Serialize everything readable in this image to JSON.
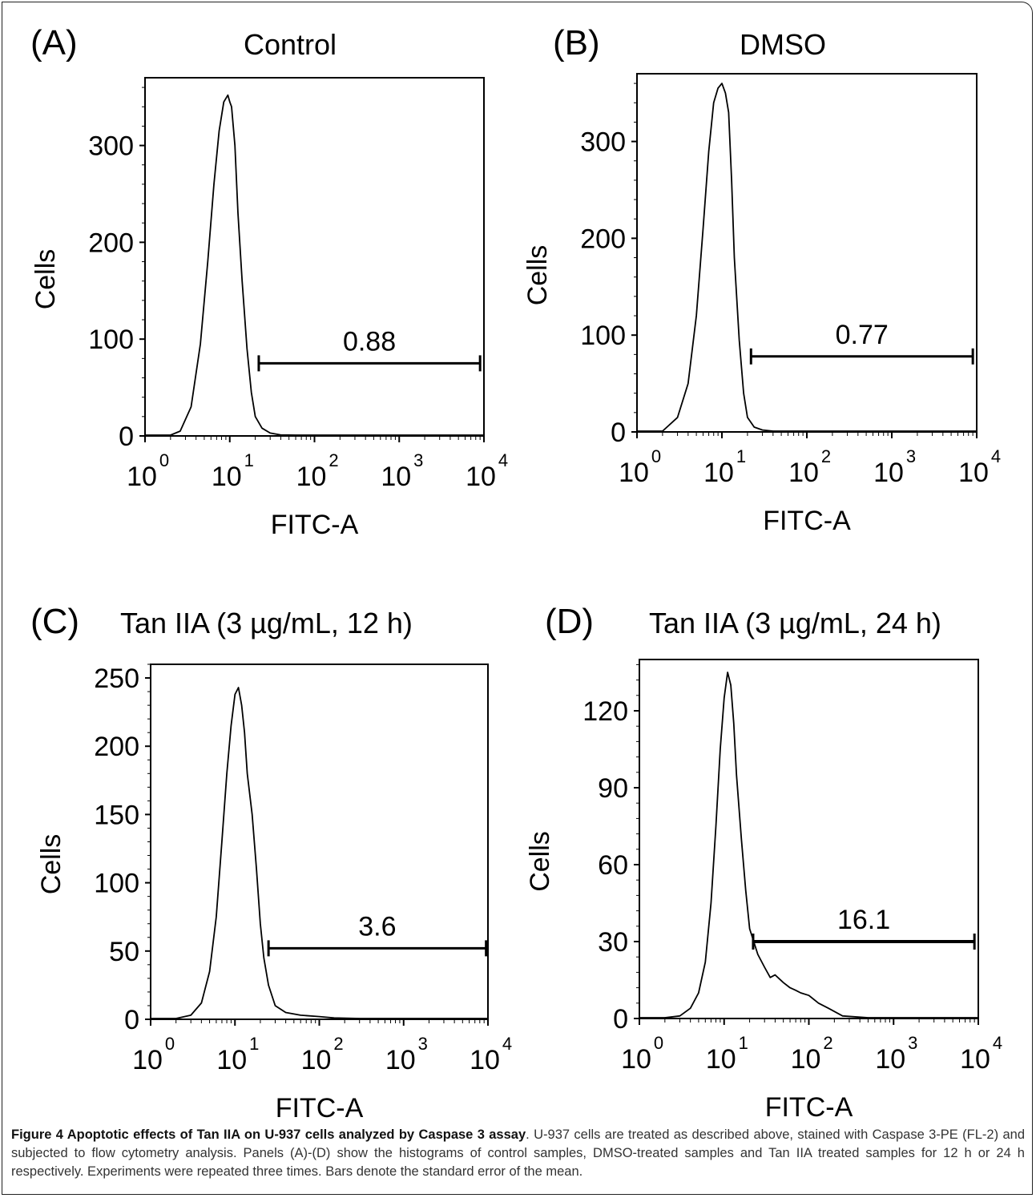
{
  "caption": {
    "title": "Figure 4 Apoptotic effects of Tan IIA on U-937 cells analyzed by Caspase 3 assay",
    "text": ". U-937 cells are treated as described above, stained with Caspase 3-PE (FL-2) and subjected to flow cytometry analysis. Panels (A)-(D) show the histograms of control samples, DMSO-treated samples and Tan IIA treated samples for 12 h or 24 h respectively. Experiments were repeated three times. Bars denote the standard error of the mean."
  },
  "chart_data": [
    {
      "type": "area",
      "panel": "(A)",
      "title": "Control",
      "xlabel": "FITC-A",
      "ylabel": "Cells",
      "x_scale": "log",
      "xlim": [
        1,
        10000
      ],
      "ylim": [
        0,
        370
      ],
      "yticks": [
        0,
        100,
        200,
        300
      ],
      "xticks": [
        "10^0",
        "10^1",
        "10^2",
        "10^3",
        "10^4"
      ],
      "gate": {
        "label": "0.88",
        "x_range": [
          22,
          9000
        ],
        "y": 75
      },
      "x": [
        1,
        2,
        2.6,
        3.5,
        4.5,
        5.5,
        6.5,
        7.5,
        8.5,
        9.5,
        10,
        10.5,
        11.5,
        12.5,
        14,
        16,
        18,
        20,
        24,
        30,
        40,
        60,
        100,
        1000,
        10000
      ],
      "y": [
        0,
        0,
        5,
        30,
        95,
        180,
        260,
        315,
        345,
        352,
        345,
        340,
        300,
        230,
        160,
        90,
        45,
        20,
        8,
        3,
        1,
        0,
        0,
        0,
        0
      ]
    },
    {
      "type": "area",
      "panel": "(B)",
      "title": "DMSO",
      "xlabel": "FITC-A",
      "ylabel": "Cells",
      "x_scale": "log",
      "xlim": [
        1,
        10000
      ],
      "ylim": [
        0,
        370
      ],
      "yticks": [
        0,
        100,
        200,
        300
      ],
      "xticks": [
        "10^0",
        "10^1",
        "10^2",
        "10^3",
        "10^4"
      ],
      "gate": {
        "label": "0.77",
        "x_range": [
          22,
          9000
        ],
        "y": 78
      },
      "x": [
        1,
        2,
        3,
        4,
        5,
        6,
        7,
        8,
        9,
        10,
        11,
        12,
        13,
        14,
        16,
        18,
        20,
        24,
        30,
        40,
        60,
        100,
        1000,
        10000
      ],
      "y": [
        0,
        0,
        15,
        50,
        120,
        210,
        290,
        340,
        355,
        360,
        350,
        330,
        260,
        180,
        95,
        40,
        15,
        5,
        2,
        0,
        0,
        0,
        0,
        0
      ]
    },
    {
      "type": "area",
      "panel": "(C)",
      "title": "Tan IIA (3 µg/mL, 12 h)",
      "xlabel": "FITC-A",
      "ylabel": "Cells",
      "x_scale": "log",
      "xlim": [
        1,
        10000
      ],
      "ylim": [
        0,
        260
      ],
      "yticks": [
        0,
        50,
        100,
        150,
        200,
        250
      ],
      "xticks": [
        "10^0",
        "10^1",
        "10^2",
        "10^3",
        "10^4"
      ],
      "gate": {
        "label": "3.6",
        "x_range": [
          25,
          9500
        ],
        "y": 52
      },
      "x": [
        1,
        2,
        3,
        4,
        5,
        6,
        7,
        8,
        9,
        10,
        11,
        12,
        13,
        14,
        16,
        18,
        20,
        22,
        25,
        30,
        40,
        60,
        100,
        150,
        300,
        1000,
        10000
      ],
      "y": [
        0,
        0,
        3,
        12,
        35,
        75,
        130,
        180,
        215,
        238,
        243,
        230,
        210,
        180,
        150,
        110,
        70,
        45,
        25,
        10,
        5,
        3,
        2,
        1,
        0,
        0,
        0
      ]
    },
    {
      "type": "area",
      "panel": "(D)",
      "title": "Tan IIA (3 µg/mL, 24 h)",
      "xlabel": "FITC-A",
      "ylabel": "Cells",
      "x_scale": "log",
      "xlim": [
        1,
        10000
      ],
      "ylim": [
        0,
        140
      ],
      "yticks": [
        0,
        30,
        60,
        90,
        120
      ],
      "xticks": [
        "10^0",
        "10^1",
        "10^2",
        "10^3",
        "10^4"
      ],
      "gate": {
        "label": "16.1",
        "x_range": [
          22,
          9000
        ],
        "y": 30
      },
      "x": [
        1,
        2,
        3,
        4,
        5,
        6,
        7,
        8,
        9,
        10,
        11,
        12,
        13,
        14,
        16,
        18,
        20,
        25,
        30,
        35,
        40,
        50,
        60,
        70,
        80,
        100,
        130,
        170,
        250,
        500,
        1000,
        10000
      ],
      "y": [
        0,
        0,
        1,
        4,
        10,
        22,
        45,
        75,
        105,
        125,
        135,
        130,
        115,
        95,
        70,
        50,
        35,
        25,
        20,
        16,
        17,
        14,
        12,
        11,
        10,
        9,
        6,
        4,
        1,
        0,
        0,
        0
      ]
    }
  ]
}
